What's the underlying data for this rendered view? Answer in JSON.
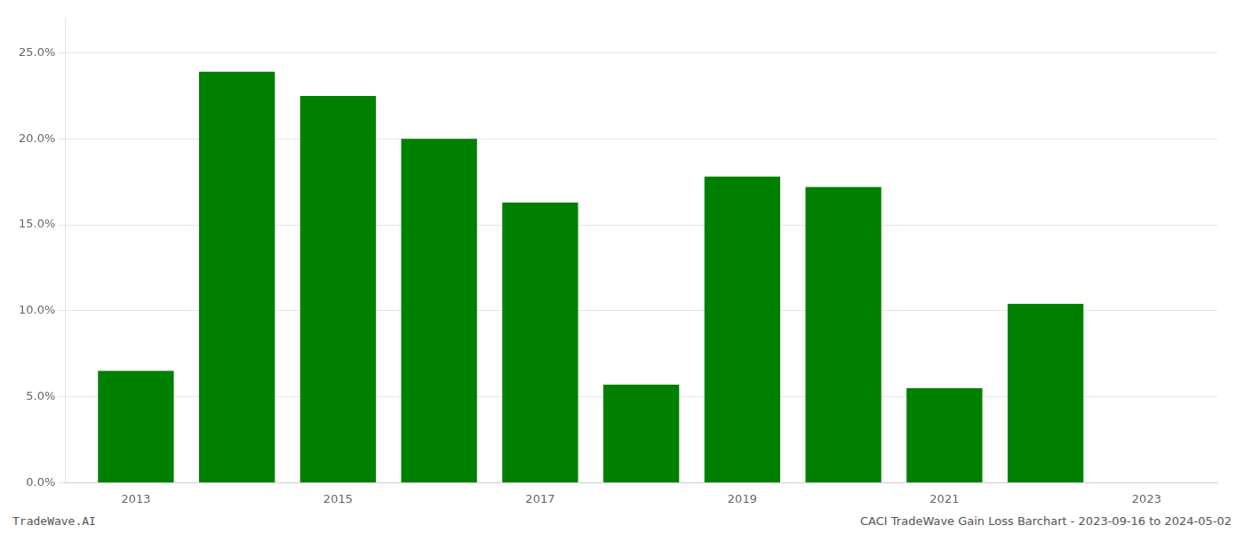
{
  "chart_data": {
    "type": "bar",
    "x": [
      2013,
      2014,
      2015,
      2016,
      2017,
      2018,
      2019,
      2020,
      2021,
      2022
    ],
    "values": [
      0.065,
      0.239,
      0.225,
      0.2,
      0.163,
      0.057,
      0.178,
      0.172,
      0.055,
      0.104
    ],
    "color": "#008000",
    "xlim": [
      2012.3,
      2023.7
    ],
    "xticks": [
      2013,
      2015,
      2017,
      2019,
      2021,
      2023
    ],
    "ylim": [
      0,
      0.27
    ],
    "yticks": [
      {
        "value": 0.0,
        "label": "0.0%"
      },
      {
        "value": 0.05,
        "label": "5.0%"
      },
      {
        "value": 0.1,
        "label": "10.0%"
      },
      {
        "value": 0.15,
        "label": "15.0%"
      },
      {
        "value": 0.2,
        "label": "20.0%"
      },
      {
        "value": 0.25,
        "label": "25.0%"
      }
    ],
    "grid": "y",
    "annotations": [
      "TradeWave.AI",
      "CACI TradeWave Gain Loss Barchart - 2023-09-16 to 2024-05-02"
    ]
  }
}
